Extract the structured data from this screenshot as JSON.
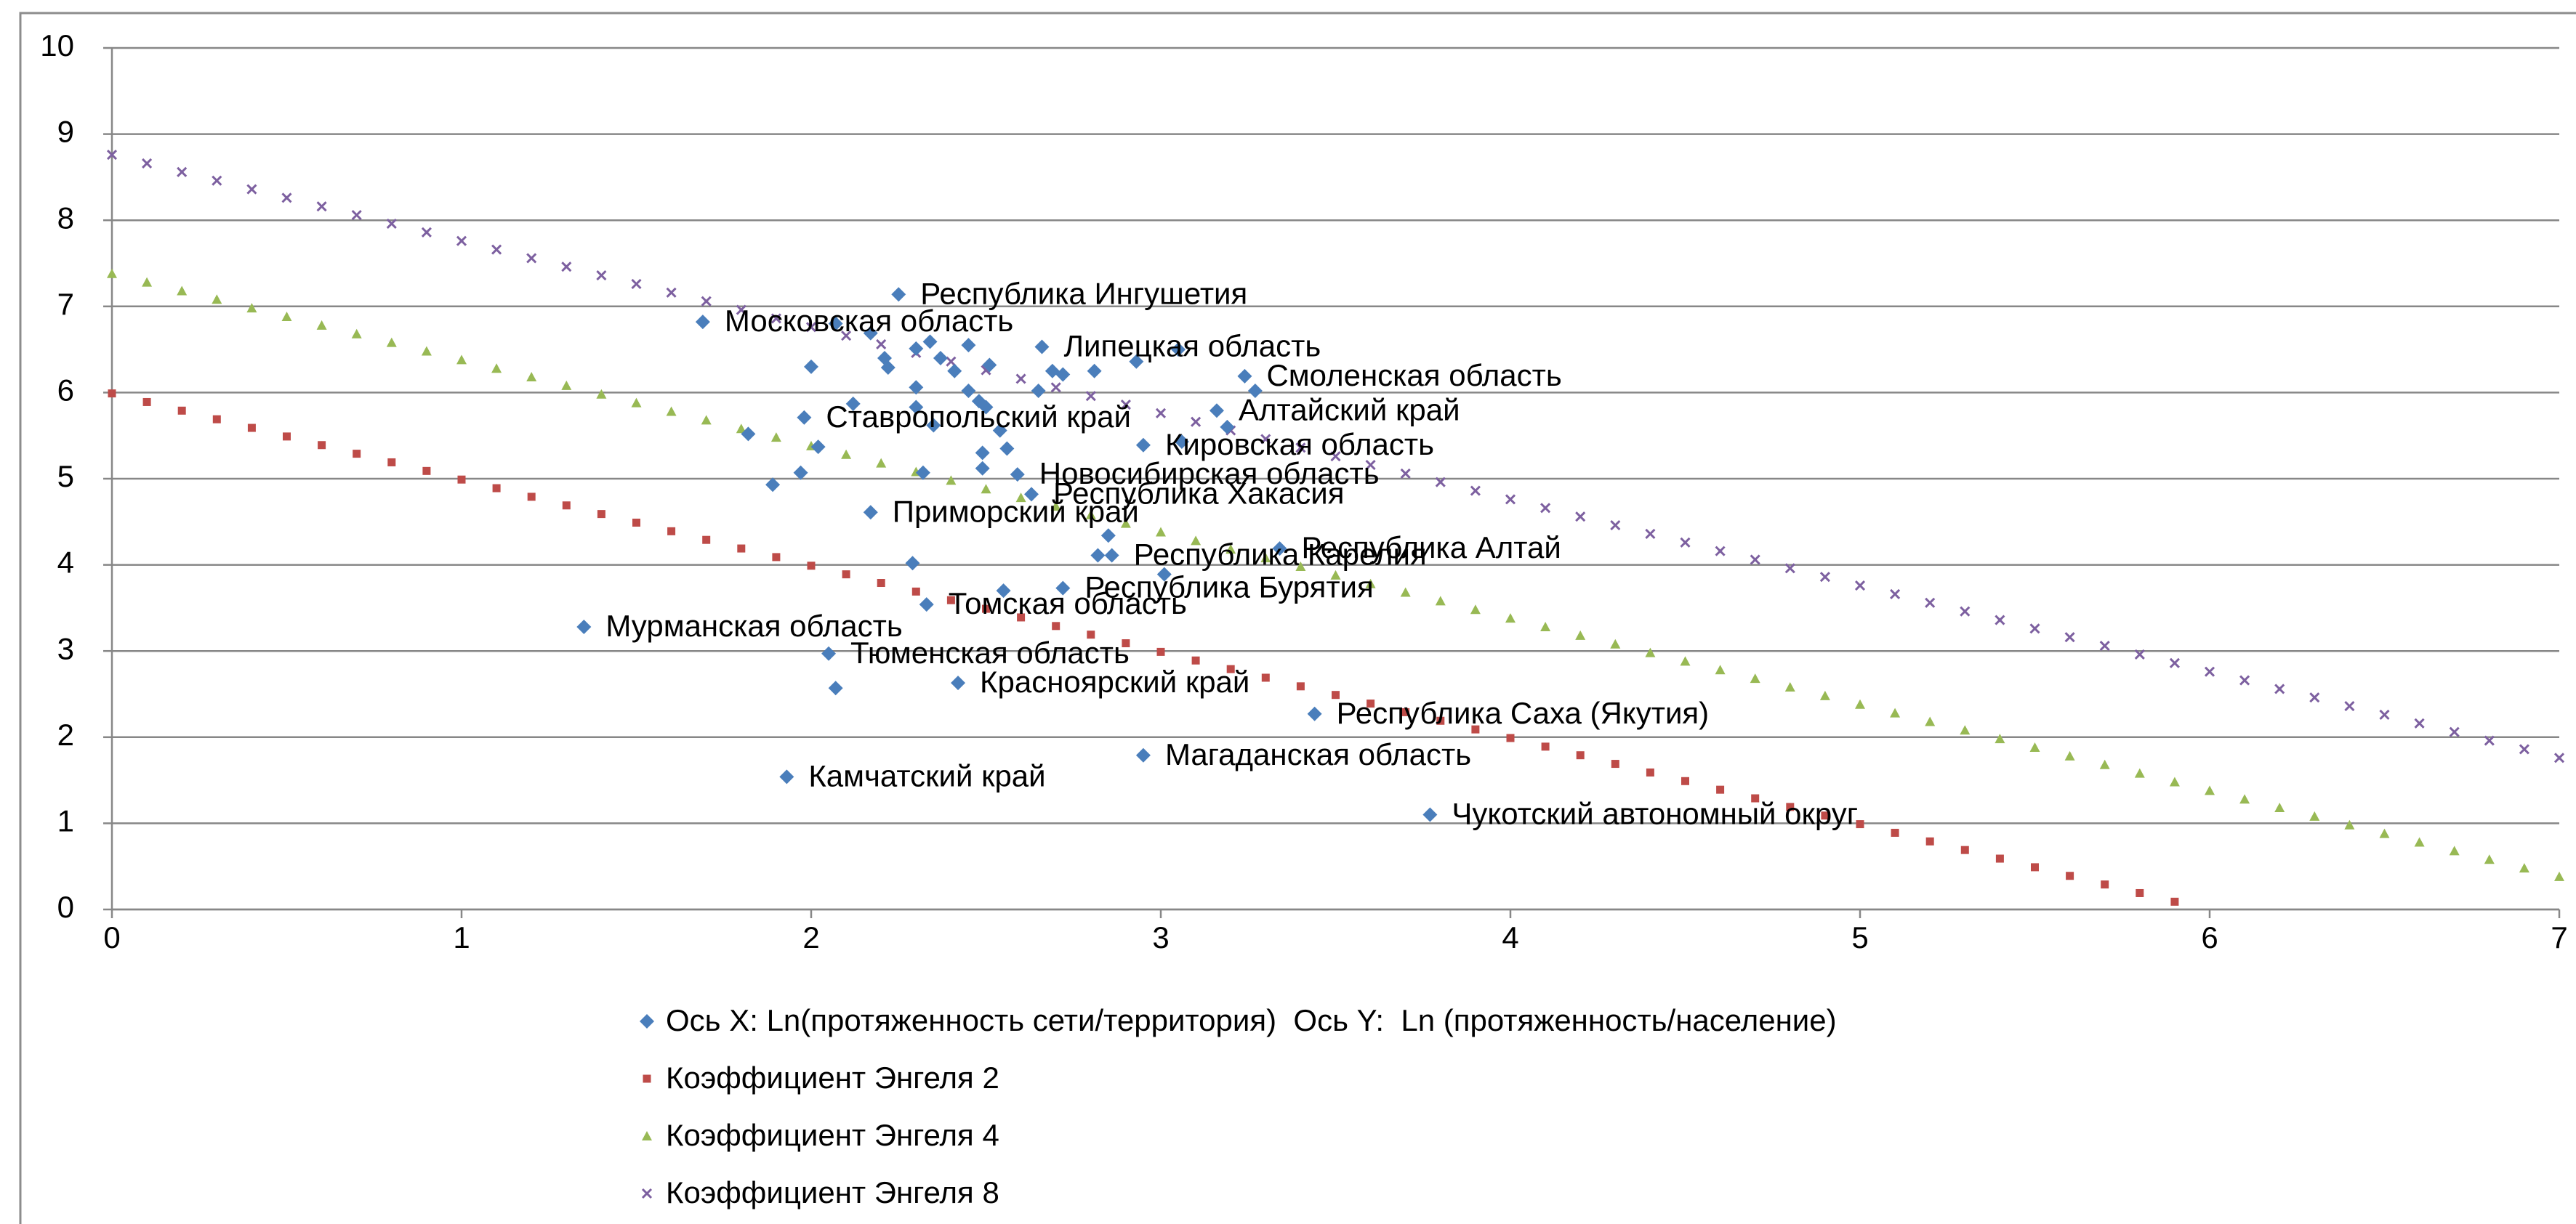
{
  "chart_data": {
    "type": "scatter",
    "xlim": [
      0,
      7
    ],
    "xticks": [
      0,
      1,
      2,
      3,
      4,
      5,
      6,
      7
    ],
    "ylim": [
      0,
      10
    ],
    "yticks": [
      0,
      1,
      2,
      3,
      4,
      5,
      6,
      7,
      8,
      9,
      10
    ],
    "grid": true,
    "legend": "bottom",
    "series": [
      {
        "name": "Ось X: Ln(протяженность сети/территория)  Ось Y:  Ln (протяженность/население)",
        "color": "#4a7ebb",
        "marker": "diamond",
        "x": [
          2.25,
          1.69,
          2.66,
          3.24,
          3.16,
          1.98,
          2.95,
          2.59,
          2.63,
          2.17,
          3.34,
          2.86,
          2.72,
          2.33,
          1.35,
          2.05,
          2.42,
          3.44,
          2.95,
          1.93,
          3.77,
          2.0,
          2.07,
          2.17,
          2.21,
          2.22,
          2.3,
          2.34,
          2.37,
          2.41,
          2.45,
          2.51,
          2.65,
          2.69,
          2.72,
          2.81,
          2.93,
          3.05,
          2.3,
          2.45,
          2.12,
          2.3,
          2.35,
          2.48,
          2.5,
          2.54,
          3.06,
          3.19,
          3.27,
          1.82,
          2.02,
          1.97,
          1.89,
          2.49,
          2.56,
          2.49,
          2.32,
          2.85,
          2.82,
          2.29,
          2.55,
          3.01,
          2.07
        ],
        "values": [
          7.14,
          6.82,
          6.53,
          6.19,
          5.79,
          5.71,
          5.39,
          5.05,
          4.82,
          4.61,
          4.19,
          4.11,
          3.73,
          3.54,
          3.28,
          2.97,
          2.63,
          2.27,
          1.79,
          1.54,
          1.1,
          6.3,
          6.8,
          6.69,
          6.4,
          6.29,
          6.51,
          6.59,
          6.4,
          6.25,
          6.55,
          6.32,
          6.02,
          6.25,
          6.21,
          6.25,
          6.36,
          6.5,
          6.06,
          6.02,
          5.87,
          5.83,
          5.62,
          5.9,
          5.83,
          5.56,
          5.43,
          5.6,
          6.02,
          5.52,
          5.37,
          5.07,
          4.93,
          5.3,
          5.35,
          5.12,
          5.07,
          4.34,
          4.11,
          4.02,
          3.7,
          3.89,
          2.57
        ],
        "labels": [
          "Республика Ингушетия",
          "Московская область",
          "Липецкая область",
          "Смоленская область",
          "Алтайский край",
          "Ставропольский край",
          "Кировская область",
          "Новосибирская область",
          "Республика Хакасия",
          "Приморский край",
          "Республика Алтай",
          "Республика Карелия",
          "Республика Бурятия",
          "Томская область",
          "Мурманская область",
          "Тюменская область",
          "Красноярский край",
          "Республика Саха (Якутия)",
          "Магаданская область",
          "Камчатский край",
          "Чукотский автономный округ",
          null,
          null,
          null,
          null,
          null,
          null,
          null,
          null,
          null,
          null,
          null,
          null,
          null,
          null,
          null,
          null,
          null,
          null,
          null,
          null,
          null,
          null,
          null,
          null,
          null,
          null,
          null,
          null,
          null,
          null,
          null,
          null,
          null,
          null,
          null,
          null,
          null,
          null,
          null,
          null,
          null,
          null
        ]
      },
      {
        "name": "Коэффициент Энгеля 2",
        "color": "#be4b48",
        "marker": "square",
        "x": [
          0,
          0.1,
          0.2,
          0.3,
          0.4,
          0.5,
          0.6,
          0.7,
          0.8,
          0.9,
          1,
          1.1,
          1.2,
          1.3,
          1.4,
          1.5,
          1.6,
          1.7,
          1.8,
          1.9,
          2,
          2.1,
          2.2,
          2.3,
          2.4,
          2.5,
          2.6,
          2.7,
          2.8,
          2.9,
          3,
          3.1,
          3.2,
          3.3,
          3.4,
          3.5,
          3.6,
          3.7,
          3.8,
          3.9,
          4,
          4.1,
          4.2,
          4.3,
          4.4,
          4.5,
          4.6,
          4.7,
          4.8,
          4.9,
          5,
          5.1,
          5.2,
          5.3,
          5.4,
          5.5,
          5.6,
          5.7,
          5.8,
          5.9
        ],
        "values": [
          5.99,
          5.89,
          5.79,
          5.69,
          5.59,
          5.49,
          5.39,
          5.29,
          5.19,
          5.09,
          4.99,
          4.89,
          4.79,
          4.69,
          4.59,
          4.49,
          4.39,
          4.29,
          4.19,
          4.09,
          3.99,
          3.89,
          3.79,
          3.69,
          3.59,
          3.49,
          3.39,
          3.29,
          3.19,
          3.09,
          2.99,
          2.89,
          2.79,
          2.69,
          2.59,
          2.49,
          2.39,
          2.29,
          2.19,
          2.09,
          1.99,
          1.89,
          1.79,
          1.69,
          1.59,
          1.49,
          1.39,
          1.29,
          1.19,
          1.09,
          0.99,
          0.89,
          0.79,
          0.69,
          0.59,
          0.49,
          0.39,
          0.29,
          0.19,
          0.09
        ]
      },
      {
        "name": "Коэффициент Энгеля 4",
        "color": "#98b954",
        "marker": "triangle",
        "x": [
          0,
          0.1,
          0.2,
          0.3,
          0.4,
          0.5,
          0.6,
          0.7,
          0.8,
          0.9,
          1,
          1.1,
          1.2,
          1.3,
          1.4,
          1.5,
          1.6,
          1.7,
          1.8,
          1.9,
          2,
          2.1,
          2.2,
          2.3,
          2.4,
          2.5,
          2.6,
          2.7,
          2.8,
          2.9,
          3,
          3.1,
          3.2,
          3.3,
          3.4,
          3.5,
          3.6,
          3.7,
          3.8,
          3.9,
          4,
          4.1,
          4.2,
          4.3,
          4.4,
          4.5,
          4.6,
          4.7,
          4.8,
          4.9,
          5,
          5.1,
          5.2,
          5.3,
          5.4,
          5.5,
          5.6,
          5.7,
          5.8,
          5.9,
          6,
          6.1,
          6.2,
          6.3,
          6.4,
          6.5,
          6.6,
          6.7,
          6.8,
          6.9,
          7
        ],
        "values": [
          7.38,
          7.28,
          7.18,
          7.08,
          6.98,
          6.88,
          6.78,
          6.68,
          6.58,
          6.48,
          6.38,
          6.28,
          6.18,
          6.08,
          5.98,
          5.88,
          5.78,
          5.68,
          5.58,
          5.48,
          5.38,
          5.28,
          5.18,
          5.08,
          4.98,
          4.88,
          4.78,
          4.68,
          4.58,
          4.48,
          4.38,
          4.28,
          4.18,
          4.08,
          3.98,
          3.88,
          3.78,
          3.68,
          3.58,
          3.48,
          3.38,
          3.28,
          3.18,
          3.08,
          2.98,
          2.88,
          2.78,
          2.68,
          2.58,
          2.48,
          2.38,
          2.28,
          2.18,
          2.08,
          1.98,
          1.88,
          1.78,
          1.68,
          1.58,
          1.48,
          1.38,
          1.28,
          1.18,
          1.08,
          0.98,
          0.88,
          0.78,
          0.68,
          0.58,
          0.48,
          0.38
        ]
      },
      {
        "name": "Коэффициент Энгеля 8",
        "color": "#7d60a0",
        "marker": "x",
        "x": [
          0,
          0.1,
          0.2,
          0.3,
          0.4,
          0.5,
          0.6,
          0.7,
          0.8,
          0.9,
          1,
          1.1,
          1.2,
          1.3,
          1.4,
          1.5,
          1.6,
          1.7,
          1.8,
          1.9,
          2,
          2.1,
          2.2,
          2.3,
          2.4,
          2.5,
          2.6,
          2.7,
          2.8,
          2.9,
          3,
          3.1,
          3.2,
          3.3,
          3.4,
          3.5,
          3.6,
          3.7,
          3.8,
          3.9,
          4,
          4.1,
          4.2,
          4.3,
          4.4,
          4.5,
          4.6,
          4.7,
          4.8,
          4.9,
          5,
          5.1,
          5.2,
          5.3,
          5.4,
          5.5,
          5.6,
          5.7,
          5.8,
          5.9,
          6,
          6.1,
          6.2,
          6.3,
          6.4,
          6.5,
          6.6,
          6.7,
          6.8,
          6.9,
          7
        ],
        "values": [
          8.76,
          8.66,
          8.56,
          8.46,
          8.36,
          8.26,
          8.16,
          8.06,
          7.96,
          7.86,
          7.76,
          7.66,
          7.56,
          7.46,
          7.36,
          7.26,
          7.16,
          7.06,
          6.96,
          6.86,
          6.76,
          6.66,
          6.56,
          6.46,
          6.36,
          6.26,
          6.16,
          6.06,
          5.96,
          5.86,
          5.76,
          5.66,
          5.56,
          5.46,
          5.36,
          5.26,
          5.16,
          5.06,
          4.96,
          4.86,
          4.76,
          4.66,
          4.56,
          4.46,
          4.36,
          4.26,
          4.16,
          4.06,
          3.96,
          3.86,
          3.76,
          3.66,
          3.56,
          3.46,
          3.36,
          3.26,
          3.16,
          3.06,
          2.96,
          2.86,
          2.76,
          2.66,
          2.56,
          2.46,
          2.36,
          2.26,
          2.16,
          2.06,
          1.96,
          1.86,
          1.76
        ]
      }
    ]
  }
}
